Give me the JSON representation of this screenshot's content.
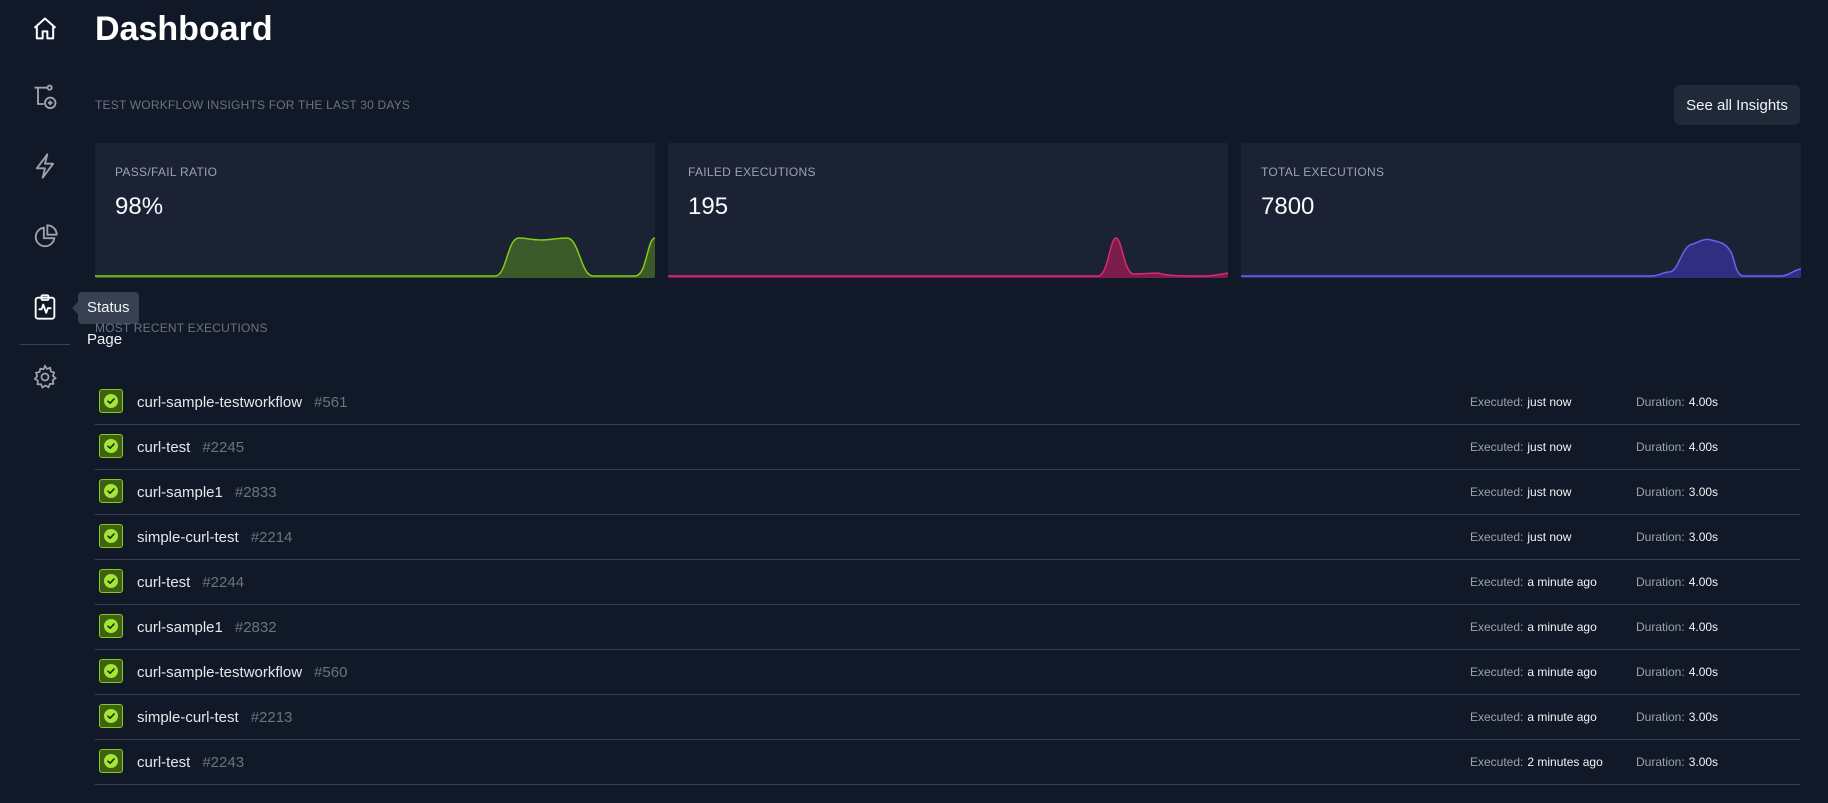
{
  "sidebar": {
    "items": [
      {
        "name": "home-icon"
      },
      {
        "name": "workflow-add-icon"
      },
      {
        "name": "lightning-icon"
      },
      {
        "name": "pie-chart-icon"
      },
      {
        "name": "status-page-icon"
      },
      {
        "name": "gear-icon"
      }
    ],
    "tooltip": "Status Page"
  },
  "header": {
    "title": "Dashboard"
  },
  "insights": {
    "label": "TEST WORKFLOW INSIGHTS FOR THE LAST 30 DAYS",
    "button": "See all Insights",
    "cards": [
      {
        "label": "PASS/FAIL RATIO",
        "value": "98%",
        "color": "#84cc16"
      },
      {
        "label": "FAILED EXECUTIONS",
        "value": "195",
        "color": "#db2777"
      },
      {
        "label": "TOTAL EXECUTIONS",
        "value": "7800",
        "color": "#6366f1"
      }
    ]
  },
  "recent": {
    "label": "MOST RECENT EXECUTIONS",
    "executed_label": "Executed:",
    "duration_label": "Duration:",
    "rows": [
      {
        "name": "curl-sample-testworkflow",
        "number": "#561",
        "executed": "just now",
        "duration": "4.00s"
      },
      {
        "name": "curl-test",
        "number": "#2245",
        "executed": "just now",
        "duration": "4.00s"
      },
      {
        "name": "curl-sample1",
        "number": "#2833",
        "executed": "just now",
        "duration": "3.00s"
      },
      {
        "name": "simple-curl-test",
        "number": "#2214",
        "executed": "just now",
        "duration": "3.00s"
      },
      {
        "name": "curl-test",
        "number": "#2244",
        "executed": "a minute ago",
        "duration": "4.00s"
      },
      {
        "name": "curl-sample1",
        "number": "#2832",
        "executed": "a minute ago",
        "duration": "4.00s"
      },
      {
        "name": "curl-sample-testworkflow",
        "number": "#560",
        "executed": "a minute ago",
        "duration": "4.00s"
      },
      {
        "name": "simple-curl-test",
        "number": "#2213",
        "executed": "a minute ago",
        "duration": "3.00s"
      },
      {
        "name": "curl-test",
        "number": "#2243",
        "executed": "2 minutes ago",
        "duration": "3.00s"
      }
    ]
  }
}
